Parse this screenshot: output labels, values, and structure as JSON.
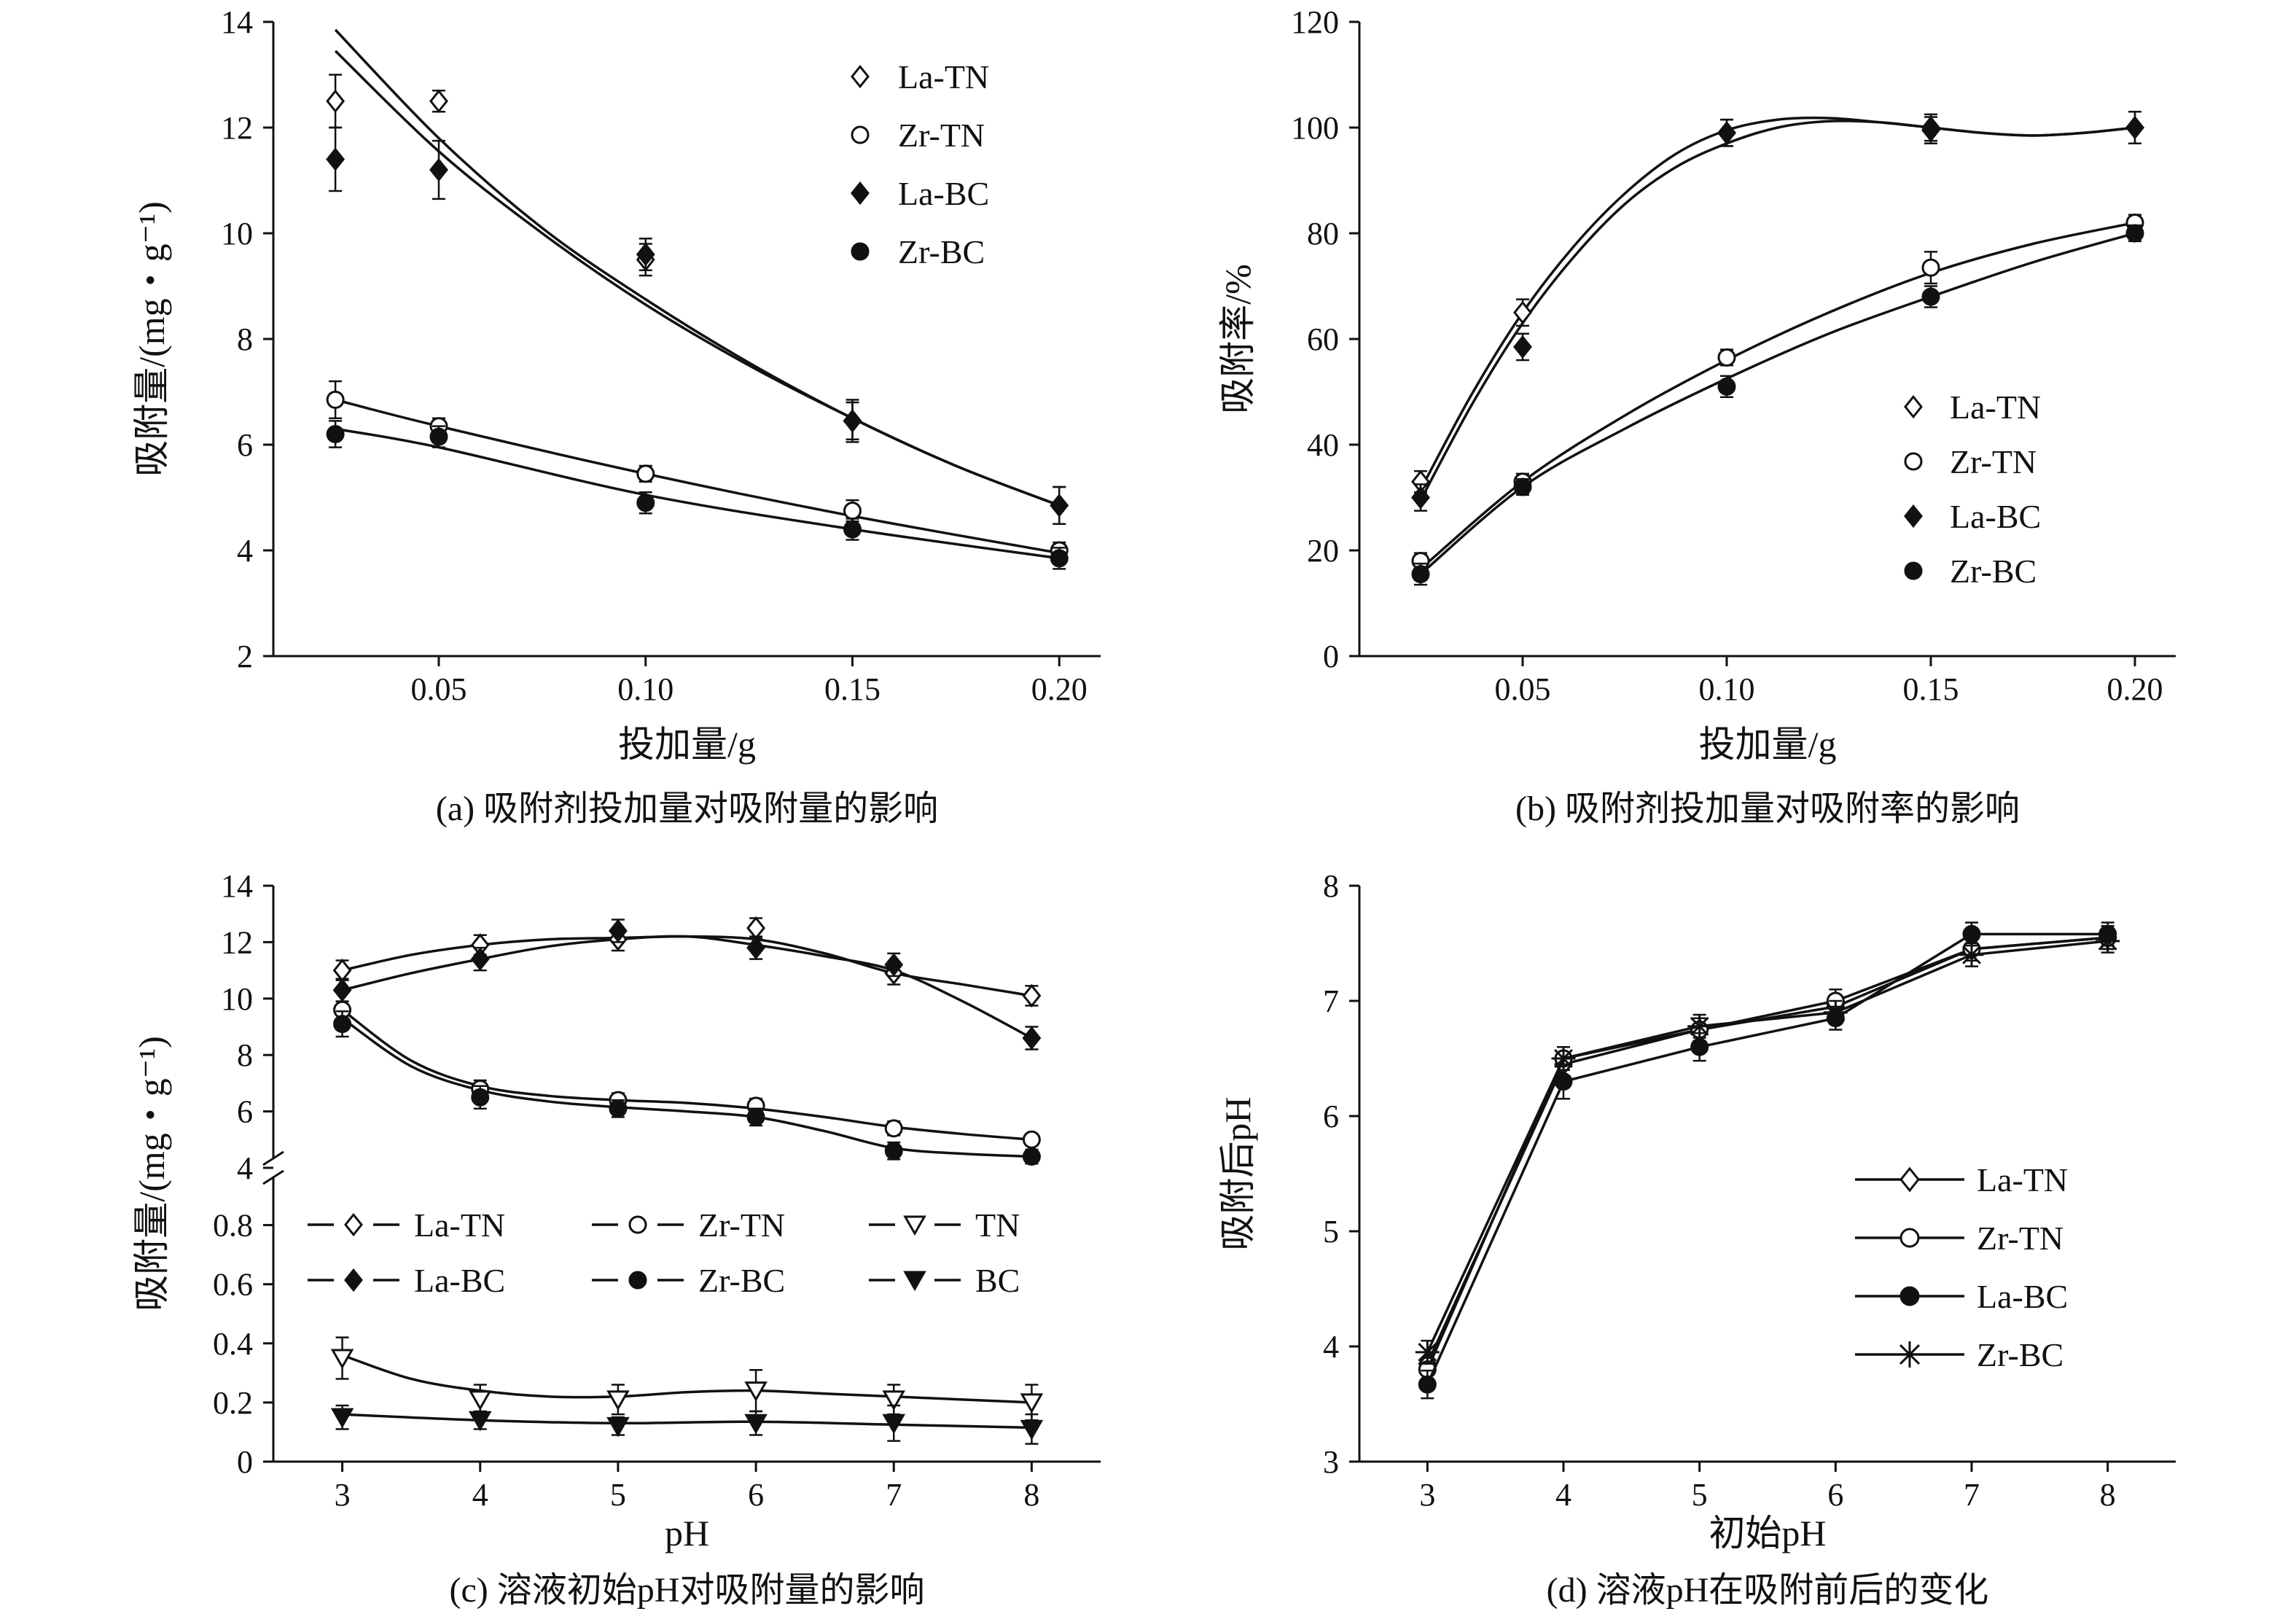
{
  "chart_data": [
    {
      "id": "a",
      "type": "scatter",
      "caption": "(a) 吸附剂投加量对吸附量的影响",
      "xlabel": "投加量/g",
      "ylabel": "吸附量/(mg・g⁻¹)",
      "xlim": [
        0.01,
        0.21
      ],
      "ylim": [
        2,
        14
      ],
      "xticks": [
        0.05,
        0.1,
        0.15,
        0.2
      ],
      "xtick_labels": [
        "0.05",
        "0.10",
        "0.15",
        "0.20"
      ],
      "yticks": [
        2,
        4,
        6,
        8,
        10,
        12,
        14
      ],
      "ytick_labels": [
        "2",
        "4",
        "6",
        "8",
        "10",
        "12",
        "14"
      ],
      "legend_position": "top-right",
      "legend": [
        {
          "label": "La-TN",
          "marker": "diamond-open"
        },
        {
          "label": "Zr-TN",
          "marker": "circle-open"
        },
        {
          "label": "La-BC",
          "marker": "diamond-filled"
        },
        {
          "label": "Zr-BC",
          "marker": "circle-filled"
        }
      ],
      "series": [
        {
          "name": "La-TN",
          "marker": "diamond-open",
          "x": [
            0.025,
            0.05,
            0.1,
            0.15,
            0.2
          ],
          "y": [
            12.5,
            12.5,
            9.5,
            6.45,
            4.85
          ],
          "err": [
            0.5,
            0.2,
            0.3,
            0.4,
            0.35
          ]
        },
        {
          "name": "Zr-TN",
          "marker": "circle-open",
          "x": [
            0.025,
            0.05,
            0.1,
            0.15,
            0.2
          ],
          "y": [
            6.85,
            6.35,
            5.45,
            4.75,
            4.0
          ],
          "err": [
            0.35,
            0.15,
            0.15,
            0.2,
            0.15
          ]
        },
        {
          "name": "La-BC",
          "marker": "diamond-filled",
          "x": [
            0.025,
            0.05,
            0.1,
            0.15,
            0.2
          ],
          "y": [
            11.4,
            11.2,
            9.6,
            6.45,
            4.85
          ],
          "err": [
            0.6,
            0.55,
            0.3,
            0.35,
            0.35
          ]
        },
        {
          "name": "Zr-BC",
          "marker": "circle-filled",
          "x": [
            0.025,
            0.05,
            0.1,
            0.15,
            0.2
          ],
          "y": [
            6.2,
            6.15,
            4.9,
            4.4,
            3.85
          ],
          "err": [
            0.25,
            0.2,
            0.2,
            0.2,
            0.2
          ]
        }
      ],
      "fits": [
        {
          "x": [
            0.025,
            0.05,
            0.075,
            0.1,
            0.125,
            0.15,
            0.175,
            0.2
          ],
          "y": [
            13.85,
            11.8,
            10.1,
            8.75,
            7.55,
            6.5,
            5.6,
            4.85
          ]
        },
        {
          "x": [
            0.025,
            0.05,
            0.075,
            0.1,
            0.125,
            0.15,
            0.175,
            0.2
          ],
          "y": [
            13.45,
            11.55,
            10.0,
            8.65,
            7.5,
            6.5,
            5.6,
            4.85
          ]
        },
        {
          "x": [
            0.025,
            0.05,
            0.1,
            0.15,
            0.2
          ],
          "y": [
            6.85,
            6.35,
            5.45,
            4.65,
            3.95
          ]
        },
        {
          "x": [
            0.025,
            0.05,
            0.1,
            0.15,
            0.2
          ],
          "y": [
            6.3,
            5.95,
            5.05,
            4.4,
            3.85
          ]
        }
      ]
    },
    {
      "id": "b",
      "type": "scatter",
      "caption": "(b) 吸附剂投加量对吸附率的影响",
      "xlabel": "投加量/g",
      "ylabel": "吸附率/%",
      "xlim": [
        0.01,
        0.21
      ],
      "ylim": [
        0,
        120
      ],
      "xticks": [
        0.05,
        0.1,
        0.15,
        0.2
      ],
      "xtick_labels": [
        "0.05",
        "0.10",
        "0.15",
        "0.20"
      ],
      "yticks": [
        0,
        20,
        40,
        60,
        80,
        100,
        120
      ],
      "ytick_labels": [
        "0",
        "20",
        "40",
        "60",
        "80",
        "100",
        "120"
      ],
      "legend_position": "right",
      "legend": [
        {
          "label": "La-TN",
          "marker": "diamond-open"
        },
        {
          "label": "Zr-TN",
          "marker": "circle-open"
        },
        {
          "label": "La-BC",
          "marker": "diamond-filled"
        },
        {
          "label": "Zr-BC",
          "marker": "circle-filled"
        }
      ],
      "series": [
        {
          "name": "La-TN",
          "marker": "diamond-open",
          "x": [
            0.025,
            0.05,
            0.1,
            0.15,
            0.2
          ],
          "y": [
            33,
            65,
            99,
            100,
            100
          ],
          "err": [
            2,
            2.5,
            2.5,
            2.5,
            3
          ]
        },
        {
          "name": "Zr-TN",
          "marker": "circle-open",
          "x": [
            0.025,
            0.05,
            0.1,
            0.15,
            0.2
          ],
          "y": [
            18,
            33,
            56.5,
            73.5,
            82
          ],
          "err": [
            1.5,
            1.5,
            1.5,
            3,
            1.5
          ]
        },
        {
          "name": "La-BC",
          "marker": "diamond-filled",
          "x": [
            0.025,
            0.05,
            0.1,
            0.15,
            0.2
          ],
          "y": [
            30,
            58.5,
            99,
            99.5,
            100
          ],
          "err": [
            2.5,
            2.5,
            2.5,
            2.5,
            3
          ]
        },
        {
          "name": "Zr-BC",
          "marker": "circle-filled",
          "x": [
            0.025,
            0.05,
            0.1,
            0.15,
            0.2
          ],
          "y": [
            15.5,
            32,
            51,
            68,
            80
          ],
          "err": [
            2,
            1.5,
            2,
            2,
            1.5
          ]
        }
      ],
      "fits": [
        {
          "x": [
            0.025,
            0.0375,
            0.05,
            0.0625,
            0.075,
            0.0875,
            0.1,
            0.1125,
            0.125,
            0.1375,
            0.15,
            0.1625,
            0.175,
            0.1875,
            0.2
          ],
          "y": [
            31.5,
            49.5,
            65,
            77.5,
            87.5,
            95,
            99.5,
            101.5,
            101.8,
            101,
            100,
            99,
            98.5,
            99,
            100
          ]
        },
        {
          "x": [
            0.025,
            0.0375,
            0.05,
            0.0625,
            0.075,
            0.0875,
            0.1,
            0.1125,
            0.125,
            0.1375,
            0.15,
            0.1625,
            0.175,
            0.1875,
            0.2
          ],
          "y": [
            29.5,
            47.5,
            63,
            75.5,
            85.5,
            92.5,
            97,
            100,
            101.2,
            101,
            100,
            99,
            98.5,
            99,
            100
          ]
        },
        {
          "x": [
            0.025,
            0.05,
            0.075,
            0.1,
            0.125,
            0.15,
            0.175,
            0.2
          ],
          "y": [
            16.5,
            33,
            45.5,
            56,
            65,
            72.5,
            78,
            82
          ]
        },
        {
          "x": [
            0.025,
            0.05,
            0.075,
            0.1,
            0.125,
            0.15,
            0.175,
            0.2
          ],
          "y": [
            15.5,
            32,
            43,
            52.5,
            61,
            68,
            74.5,
            80
          ]
        }
      ]
    },
    {
      "id": "c",
      "type": "scatter",
      "caption": "(c) 溶液初始pH对吸附量的影响",
      "xlabel": "pH",
      "ylabel": "吸附量/(mg・g⁻¹)",
      "xlim": [
        2.5,
        8.5
      ],
      "ylim_lower": [
        0,
        0.9
      ],
      "ylim_upper": [
        4,
        14
      ],
      "axis_break": "between 0.9 and 4",
      "xticks": [
        3,
        4,
        5,
        6,
        7,
        8
      ],
      "xtick_labels": [
        "3",
        "4",
        "5",
        "6",
        "7",
        "8"
      ],
      "yticks_upper": [
        4,
        6,
        8,
        10,
        12,
        14
      ],
      "ytick_labels_upper": [
        "4",
        "6",
        "8",
        "10",
        "12",
        "14"
      ],
      "yticks_lower": [
        0,
        0.2,
        0.4,
        0.6,
        0.8
      ],
      "ytick_labels_lower": [
        "0",
        "0.2",
        "0.4",
        "0.6",
        "0.8"
      ],
      "legend_position": "middle, two rows",
      "legend": [
        {
          "label": "La-TN",
          "marker": "diamond-open"
        },
        {
          "label": "Zr-TN",
          "marker": "circle-open"
        },
        {
          "label": "TN",
          "marker": "triangle-down-open"
        },
        {
          "label": "La-BC",
          "marker": "diamond-filled"
        },
        {
          "label": "Zr-BC",
          "marker": "circle-filled"
        },
        {
          "label": "BC",
          "marker": "triangle-down-filled"
        }
      ],
      "series": [
        {
          "name": "La-TN",
          "marker": "diamond-open",
          "x": [
            3,
            4,
            5,
            6,
            7,
            8
          ],
          "y": [
            11.0,
            11.9,
            12.1,
            12.5,
            10.9,
            10.1
          ],
          "err": [
            0.35,
            0.35,
            0.4,
            0.35,
            0.4,
            0.35
          ]
        },
        {
          "name": "Zr-TN",
          "marker": "circle-open",
          "x": [
            3,
            4,
            5,
            6,
            7,
            8
          ],
          "y": [
            9.6,
            6.8,
            6.4,
            6.2,
            5.4,
            5.0
          ],
          "err": [
            0.3,
            0.3,
            0.25,
            0.25,
            0.25,
            0.2
          ]
        },
        {
          "name": "TN",
          "marker": "triangle-down-open",
          "x": [
            3,
            4,
            5,
            6,
            7,
            8
          ],
          "y": [
            0.35,
            0.21,
            0.21,
            0.24,
            0.21,
            0.2
          ],
          "err": [
            0.07,
            0.05,
            0.05,
            0.07,
            0.05,
            0.06
          ]
        },
        {
          "name": "La-BC",
          "marker": "diamond-filled",
          "x": [
            3,
            4,
            5,
            6,
            7,
            8
          ],
          "y": [
            10.3,
            11.4,
            12.4,
            11.8,
            11.2,
            8.6
          ],
          "err": [
            0.4,
            0.4,
            0.4,
            0.4,
            0.4,
            0.4
          ]
        },
        {
          "name": "Zr-BC",
          "marker": "circle-filled",
          "x": [
            3,
            4,
            5,
            6,
            7,
            8
          ],
          "y": [
            9.1,
            6.5,
            6.1,
            5.8,
            4.6,
            4.4
          ],
          "err": [
            0.45,
            0.4,
            0.3,
            0.3,
            0.3,
            0.25
          ]
        },
        {
          "name": "BC",
          "marker": "triangle-down-filled",
          "x": [
            3,
            4,
            5,
            6,
            7,
            8
          ],
          "y": [
            0.15,
            0.14,
            0.12,
            0.13,
            0.13,
            0.11
          ],
          "err": [
            0.04,
            0.03,
            0.03,
            0.04,
            0.06,
            0.05
          ]
        }
      ],
      "fits": [
        {
          "x": [
            3,
            3.5,
            4,
            4.5,
            5,
            5.5,
            6,
            6.5,
            7,
            7.5,
            8
          ],
          "y": [
            11.0,
            11.55,
            11.9,
            12.1,
            12.15,
            12.2,
            12.1,
            11.6,
            10.9,
            10.5,
            10.1
          ]
        },
        {
          "x": [
            3,
            3.5,
            4,
            4.5,
            5,
            5.5,
            6,
            6.5,
            7,
            7.5,
            8
          ],
          "y": [
            10.3,
            10.9,
            11.4,
            11.85,
            12.1,
            12.2,
            11.9,
            11.5,
            11.0,
            9.9,
            8.6
          ]
        },
        {
          "x": [
            3,
            3.5,
            4,
            4.5,
            5,
            5.5,
            6,
            6.5,
            7,
            7.5,
            8
          ],
          "y": [
            9.6,
            7.8,
            6.9,
            6.55,
            6.4,
            6.3,
            6.1,
            5.8,
            5.45,
            5.2,
            5.0
          ]
        },
        {
          "x": [
            3,
            3.5,
            4,
            4.5,
            5,
            5.5,
            6,
            6.5,
            7,
            7.5,
            8
          ],
          "y": [
            9.3,
            7.6,
            6.75,
            6.35,
            6.15,
            6.0,
            5.8,
            5.3,
            4.7,
            4.5,
            4.4
          ]
        },
        {
          "x": [
            3,
            3.5,
            4,
            4.5,
            5,
            5.5,
            6,
            6.5,
            7,
            7.5,
            8
          ],
          "y": [
            0.36,
            0.28,
            0.24,
            0.22,
            0.22,
            0.235,
            0.24,
            0.23,
            0.22,
            0.21,
            0.2
          ]
        },
        {
          "x": [
            3,
            4,
            5,
            6,
            7,
            8
          ],
          "y": [
            0.16,
            0.14,
            0.13,
            0.135,
            0.125,
            0.115
          ]
        }
      ]
    },
    {
      "id": "d",
      "type": "line",
      "caption": "(d) 溶液pH在吸附前后的变化",
      "xlabel": "初始pH",
      "ylabel": "吸附后pH",
      "xlim": [
        2.5,
        8.5
      ],
      "ylim": [
        3,
        8
      ],
      "xticks": [
        3,
        4,
        5,
        6,
        7,
        8
      ],
      "xtick_labels": [
        "3",
        "4",
        "5",
        "6",
        "7",
        "8"
      ],
      "yticks": [
        3,
        4,
        5,
        6,
        7,
        8
      ],
      "ytick_labels": [
        "3",
        "4",
        "5",
        "6",
        "7",
        "8"
      ],
      "legend_position": "right",
      "legend": [
        {
          "label": "La-TN",
          "marker": "diamond-open"
        },
        {
          "label": "Zr-TN",
          "marker": "circle-open"
        },
        {
          "label": "La-BC",
          "marker": "circle-filled"
        },
        {
          "label": "Zr-BC",
          "marker": "asterisk"
        }
      ],
      "series": [
        {
          "name": "La-TN",
          "marker": "diamond-open",
          "x": [
            3,
            4,
            5,
            6,
            7,
            8
          ],
          "y": [
            3.85,
            6.45,
            6.75,
            6.95,
            7.45,
            7.55
          ],
          "err": [
            0.1,
            0.1,
            0.1,
            0.1,
            0.1,
            0.1
          ]
        },
        {
          "name": "Zr-TN",
          "marker": "circle-open",
          "x": [
            3,
            4,
            5,
            6,
            7,
            8
          ],
          "y": [
            3.8,
            6.5,
            6.75,
            7.0,
            7.45,
            7.55
          ],
          "err": [
            0.1,
            0.1,
            0.1,
            0.1,
            0.1,
            0.1
          ]
        },
        {
          "name": "La-BC",
          "marker": "circle-filled",
          "x": [
            3,
            4,
            5,
            6,
            7,
            8
          ],
          "y": [
            3.67,
            6.3,
            6.6,
            6.85,
            7.58,
            7.58
          ],
          "err": [
            0.12,
            0.15,
            0.12,
            0.1,
            0.1,
            0.1
          ]
        },
        {
          "name": "Zr-BC",
          "marker": "asterisk",
          "x": [
            3,
            4,
            5,
            6,
            7,
            8
          ],
          "y": [
            3.95,
            6.5,
            6.78,
            6.9,
            7.4,
            7.52
          ],
          "err": [
            0.1,
            0.1,
            0.1,
            0.1,
            0.1,
            0.1
          ]
        }
      ]
    }
  ]
}
